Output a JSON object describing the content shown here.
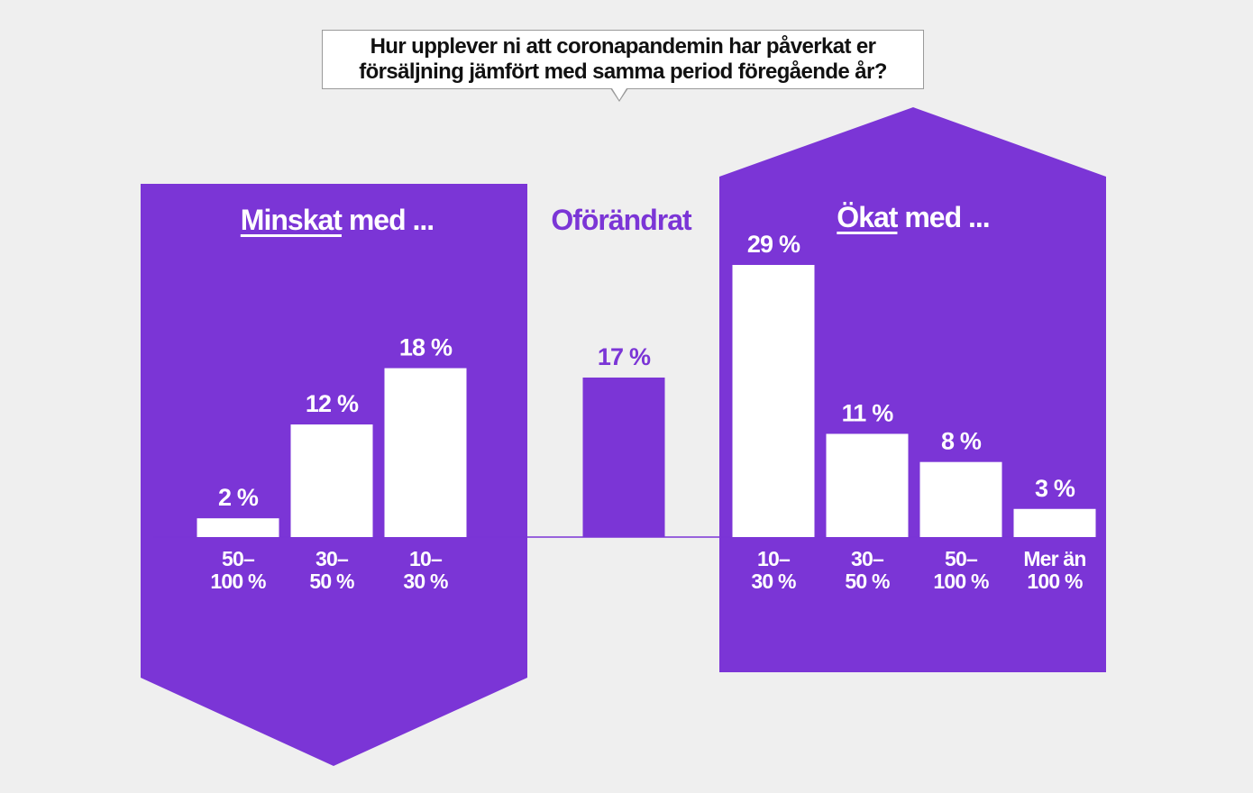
{
  "question": {
    "line1": "Hur upplever ni att coronapandemin har påverkat er",
    "line2": "försäljning jämfört med samma period föregående år?"
  },
  "groups": {
    "decreased": {
      "title_underlined": "Minskat",
      "title_rest": " med ..."
    },
    "unchanged": {
      "title": "Oförändrat"
    },
    "increased": {
      "title_underlined": "Ökat",
      "title_rest": " med ..."
    }
  },
  "colors": {
    "accent": "#7b35d6",
    "bar_on_accent": "#ffffff",
    "background": "#efefef"
  },
  "chart_data": {
    "type": "bar",
    "unit": "%",
    "ylim": [
      0,
      29
    ],
    "bars": [
      {
        "group": "decreased",
        "label_line1": "50–",
        "label_line2": "100 %",
        "value": 2,
        "value_label": "2 %"
      },
      {
        "group": "decreased",
        "label_line1": "30–",
        "label_line2": "50 %",
        "value": 12,
        "value_label": "12 %"
      },
      {
        "group": "decreased",
        "label_line1": "10–",
        "label_line2": "30 %",
        "value": 18,
        "value_label": "18 %"
      },
      {
        "group": "unchanged",
        "label_line1": "",
        "label_line2": "",
        "value": 17,
        "value_label": "17 %"
      },
      {
        "group": "increased",
        "label_line1": "10–",
        "label_line2": "30 %",
        "value": 29,
        "value_label": "29 %"
      },
      {
        "group": "increased",
        "label_line1": "30–",
        "label_line2": "50 %",
        "value": 11,
        "value_label": "11 %"
      },
      {
        "group": "increased",
        "label_line1": "50–",
        "label_line2": "100 %",
        "value": 8,
        "value_label": "8 %"
      },
      {
        "group": "increased",
        "label_line1": "Mer än",
        "label_line2": "100 %",
        "value": 3,
        "value_label": "3 %"
      }
    ]
  }
}
